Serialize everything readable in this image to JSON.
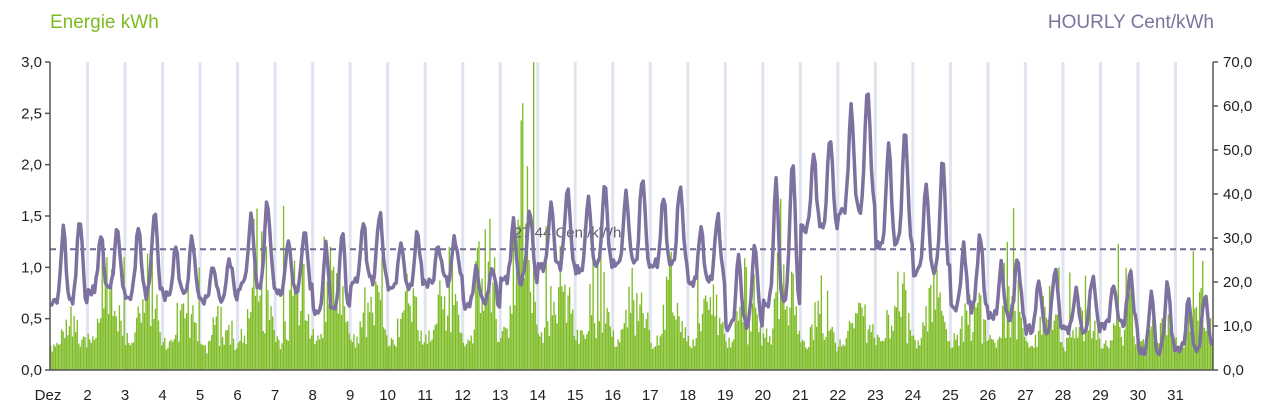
{
  "colors": {
    "energy": "#7cbb22",
    "price": "#7d729f",
    "grid": "#dfe4ef",
    "axis": "#555555",
    "average_line": "#6f6890"
  },
  "chart_data": {
    "type": "bar+line",
    "left_title": "Energie kWh",
    "right_title": "HOURLY Cent/kWh",
    "x_tick_labels": [
      "Dez",
      "2",
      "3",
      "4",
      "5",
      "6",
      "7",
      "8",
      "9",
      "10",
      "11",
      "12",
      "13",
      "14",
      "15",
      "16",
      "17",
      "18",
      "19",
      "20",
      "21",
      "22",
      "23",
      "24",
      "25",
      "26",
      "27",
      "28",
      "29",
      "30",
      "31"
    ],
    "days": 31,
    "y_left": {
      "min": 0,
      "max": 3.0,
      "ticks": [
        "0,0",
        "0,5",
        "1,0",
        "1,5",
        "2,0",
        "2,5",
        "3,0"
      ]
    },
    "y_right": {
      "min": 0,
      "max": 70,
      "ticks": [
        "0,0",
        "10,0",
        "20,0",
        "30,0",
        "40,0",
        "50,0",
        "60,0",
        "70,0"
      ]
    },
    "average": {
      "value": 27.44,
      "label": "27,44 Cent/kWh"
    },
    "energy_series": {
      "name": "Energie kWh",
      "unit": "kWh",
      "daily_base": [
        0.35,
        0.45,
        0.5,
        0.4,
        0.35,
        0.55,
        0.45,
        0.5,
        0.45,
        0.45,
        0.5,
        0.45,
        0.6,
        0.55,
        0.5,
        0.5,
        0.45,
        0.45,
        0.45,
        0.55,
        0.4,
        0.4,
        0.45,
        0.45,
        0.45,
        0.45,
        0.4,
        0.4,
        0.4,
        0.4,
        0.45
      ],
      "daily_peak": [
        0.8,
        1.1,
        1.15,
        1.0,
        0.95,
        1.9,
        1.6,
        1.3,
        1.1,
        1.1,
        1.3,
        2.1,
        3.0,
        1.4,
        1.5,
        1.2,
        1.2,
        1.0,
        1.4,
        2.65,
        1.0,
        0.85,
        1.4,
        1.2,
        1.1,
        1.7,
        1.0,
        0.95,
        1.85,
        0.9,
        1.4
      ]
    },
    "price_series": {
      "name": "HOURLY Cent/kWh",
      "unit": "Cent/kWh",
      "daily_low": [
        15,
        18,
        17,
        17,
        16,
        19,
        18,
        13,
        20,
        19,
        20,
        15,
        20,
        23,
        23,
        24,
        24,
        20,
        10,
        15,
        32,
        36,
        28,
        22,
        14,
        12,
        9,
        9,
        10,
        4,
        5
      ],
      "daily_high": [
        35,
        33,
        36,
        30,
        25,
        38,
        32,
        31,
        36,
        31,
        30,
        24,
        36,
        41,
        42,
        44,
        42,
        35,
        28,
        48,
        53,
        64,
        55,
        47,
        31,
        26,
        23,
        21,
        22,
        20,
        18
      ]
    }
  }
}
